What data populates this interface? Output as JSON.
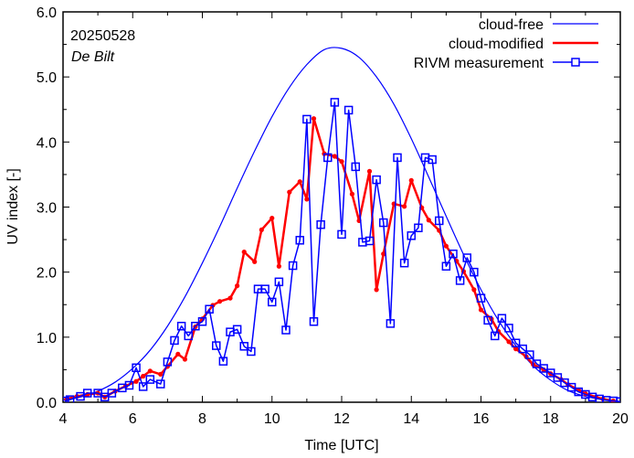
{
  "chart_data": {
    "type": "line",
    "title": "",
    "xlabel": "Time  [UTC]",
    "ylabel": "UV index  [-]",
    "xlim": [
      4,
      20
    ],
    "ylim": [
      0,
      6
    ],
    "xticks": [
      4,
      6,
      8,
      10,
      12,
      14,
      16,
      18,
      20
    ],
    "xtick_labels": [
      "4",
      "6",
      "8",
      "10",
      "12",
      "14",
      "16",
      "18",
      "20"
    ],
    "yticks": [
      0,
      1,
      2,
      3,
      4,
      5,
      6
    ],
    "ytick_labels": [
      "0.0",
      "1.0",
      "2.0",
      "3.0",
      "4.0",
      "5.0",
      "6.0"
    ],
    "grid": false,
    "legend_position": "top-right",
    "annotations": [
      "20250528",
      "De Bilt"
    ],
    "colors": {
      "cloud_free": "#0000ff",
      "cloud_modified": "#ff0000",
      "measurement": "#0000ff"
    },
    "series": [
      {
        "name": "cloud-free",
        "style": "line",
        "x": [
          4.0,
          4.5,
          5.0,
          5.5,
          6.0,
          6.5,
          7.0,
          7.5,
          8.0,
          8.5,
          9.0,
          9.5,
          10.0,
          10.5,
          11.0,
          11.5,
          12.0,
          12.5,
          13.0,
          13.5,
          14.0,
          14.5,
          15.0,
          15.5,
          16.0,
          16.5,
          17.0,
          17.5,
          18.0,
          18.5,
          19.0,
          19.5,
          20.0
        ],
        "y": [
          0.03,
          0.08,
          0.17,
          0.31,
          0.52,
          0.8,
          1.17,
          1.62,
          2.14,
          2.7,
          3.29,
          3.86,
          4.39,
          4.84,
          5.19,
          5.42,
          5.44,
          5.3,
          5.0,
          4.58,
          4.05,
          3.46,
          2.86,
          2.27,
          1.73,
          1.26,
          0.87,
          0.56,
          0.34,
          0.18,
          0.09,
          0.04,
          0.01
        ]
      },
      {
        "name": "cloud-modified",
        "style": "line-dots",
        "x": [
          4.1,
          4.4,
          4.7,
          5.0,
          5.2,
          5.5,
          5.8,
          6.1,
          6.3,
          6.5,
          6.8,
          7.0,
          7.3,
          7.5,
          7.8,
          8.0,
          8.3,
          8.5,
          8.8,
          9.0,
          9.2,
          9.5,
          9.7,
          10.0,
          10.2,
          10.5,
          10.8,
          11.0,
          11.2,
          11.5,
          11.8,
          12.0,
          12.3,
          12.5,
          12.8,
          13.0,
          13.2,
          13.5,
          13.8,
          14.0,
          14.3,
          14.5,
          14.8,
          15.0,
          15.3,
          15.5,
          15.8,
          16.0,
          16.3,
          16.5,
          16.8,
          17.0,
          17.3,
          17.5,
          17.8,
          18.0,
          18.3,
          18.5,
          18.8,
          19.0,
          19.3,
          19.5,
          19.8
        ],
        "y": [
          0.05,
          0.09,
          0.12,
          0.14,
          0.08,
          0.17,
          0.25,
          0.32,
          0.4,
          0.48,
          0.43,
          0.55,
          0.74,
          0.66,
          1.16,
          1.28,
          1.49,
          1.55,
          1.6,
          1.79,
          2.31,
          2.16,
          2.65,
          2.83,
          2.09,
          3.23,
          3.39,
          3.12,
          4.36,
          3.82,
          3.78,
          3.7,
          3.2,
          2.79,
          3.55,
          1.73,
          2.28,
          3.05,
          3.01,
          3.41,
          2.99,
          2.8,
          2.64,
          2.4,
          2.17,
          2.01,
          1.73,
          1.42,
          1.28,
          1.09,
          0.93,
          0.82,
          0.7,
          0.58,
          0.5,
          0.44,
          0.35,
          0.27,
          0.19,
          0.13,
          0.08,
          0.05,
          0.02
        ]
      },
      {
        "name": "RIVM measurement",
        "style": "line-squares",
        "x": [
          4.05,
          4.2,
          4.5,
          4.7,
          5.0,
          5.2,
          5.4,
          5.7,
          5.9,
          6.1,
          6.3,
          6.5,
          6.8,
          7.0,
          7.2,
          7.4,
          7.6,
          7.8,
          8.0,
          8.2,
          8.4,
          8.6,
          8.8,
          9.0,
          9.2,
          9.4,
          9.6,
          9.8,
          10.0,
          10.2,
          10.4,
          10.6,
          10.8,
          11.0,
          11.2,
          11.4,
          11.6,
          11.8,
          12.0,
          12.2,
          12.4,
          12.6,
          12.8,
          13.0,
          13.2,
          13.4,
          13.6,
          13.8,
          14.0,
          14.2,
          14.4,
          14.6,
          14.8,
          15.0,
          15.2,
          15.4,
          15.6,
          15.8,
          16.0,
          16.2,
          16.4,
          16.6,
          16.8,
          17.0,
          17.2,
          17.4,
          17.6,
          17.8,
          18.0,
          18.2,
          18.4,
          18.6,
          18.8,
          19.0,
          19.2,
          19.4,
          19.6,
          19.8,
          20.0
        ],
        "y": [
          0.02,
          0.04,
          0.09,
          0.14,
          0.14,
          0.08,
          0.14,
          0.22,
          0.26,
          0.53,
          0.24,
          0.35,
          0.28,
          0.62,
          0.95,
          1.17,
          1.02,
          1.17,
          1.24,
          1.43,
          0.87,
          0.63,
          1.08,
          1.12,
          0.86,
          0.78,
          1.74,
          1.74,
          1.54,
          1.85,
          1.11,
          2.1,
          2.49,
          4.35,
          1.24,
          2.73,
          3.76,
          4.61,
          2.58,
          4.49,
          3.62,
          2.46,
          2.48,
          3.42,
          2.76,
          1.21,
          3.76,
          2.14,
          2.56,
          2.68,
          3.76,
          3.73,
          2.79,
          2.09,
          2.28,
          1.87,
          2.22,
          2.0,
          1.6,
          1.26,
          1.02,
          1.29,
          1.14,
          0.91,
          0.82,
          0.73,
          0.59,
          0.52,
          0.45,
          0.38,
          0.3,
          0.23,
          0.16,
          0.12,
          0.08,
          0.05,
          0.03,
          0.02,
          0.01
        ]
      }
    ]
  }
}
